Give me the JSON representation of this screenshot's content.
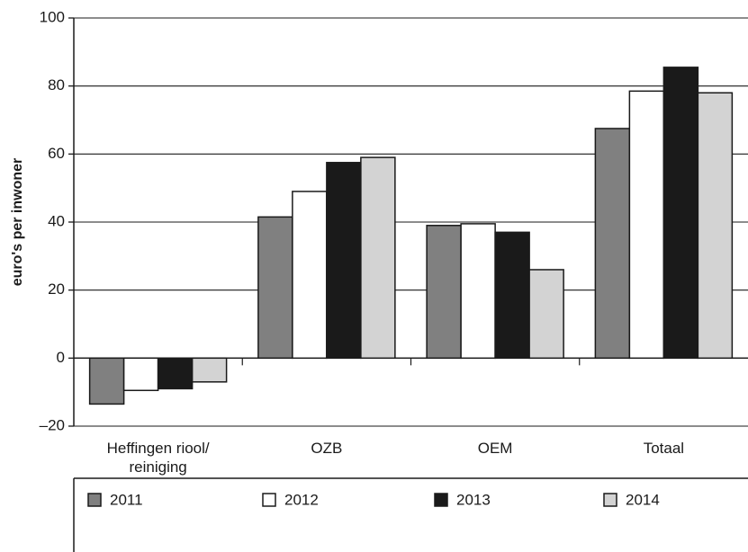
{
  "chart_data": {
    "type": "bar",
    "y_label": "euro's per inwoner",
    "categories": [
      "Heffingen riool/ reiniging",
      "OZB",
      "OEM",
      "Totaal"
    ],
    "series": [
      {
        "name": "2011",
        "color": "#808080",
        "values": [
          -13.5,
          41.5,
          39,
          67.5
        ]
      },
      {
        "name": "2012",
        "color": "#ffffff",
        "values": [
          -9.5,
          49,
          39.5,
          78.5
        ]
      },
      {
        "name": "2013",
        "color": "#1a1a1a",
        "values": [
          -9,
          57.5,
          37,
          85.5
        ]
      },
      {
        "name": "2014",
        "color": "#d3d3d3",
        "values": [
          -7,
          59,
          26,
          78
        ]
      }
    ],
    "ylim": [
      -20,
      100
    ],
    "yticks": [
      {
        "value": -20,
        "label": "–20"
      },
      0,
      20,
      40,
      60,
      80,
      100
    ],
    "grid": true
  }
}
